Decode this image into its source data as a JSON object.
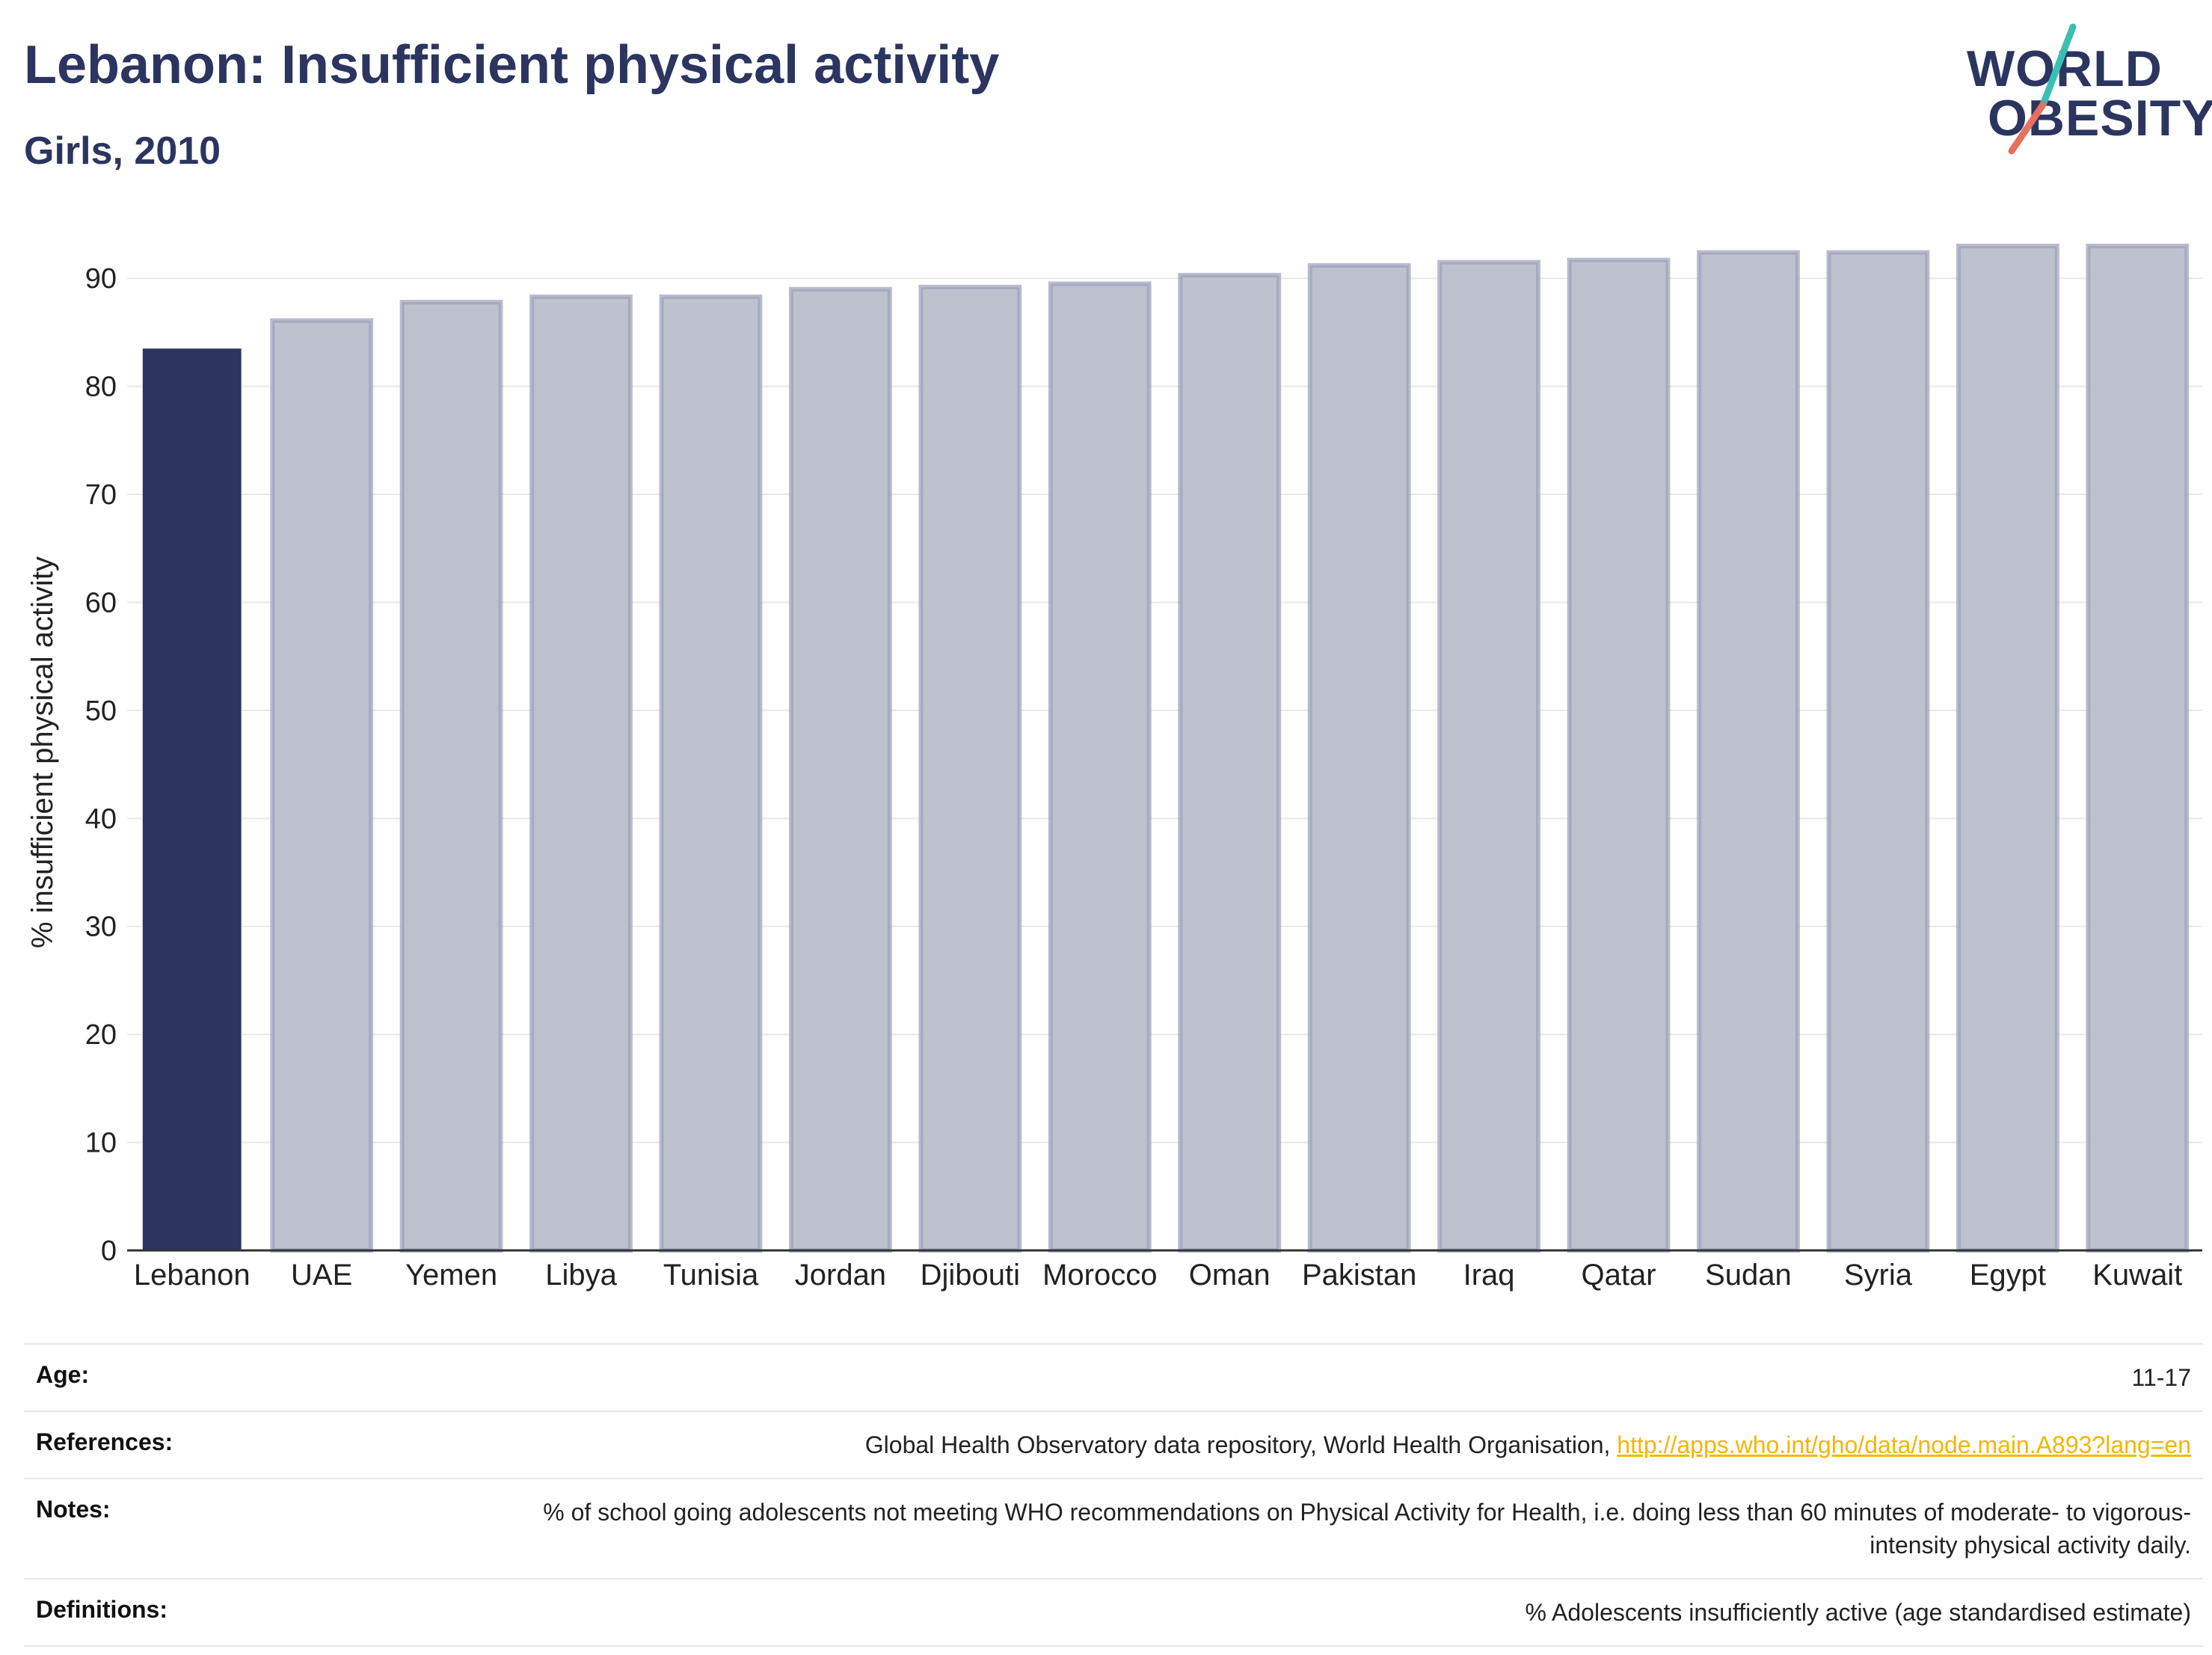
{
  "header": {
    "title": "Lebanon: Insufficient physical activity",
    "subtitle": "Girls, 2010"
  },
  "logo": {
    "line1": "WORLD",
    "line2": "OBESITY",
    "accent_colors": [
      "#3bbfb4",
      "#e8705e"
    ]
  },
  "colors": {
    "highlight": "#2b3560",
    "other_fill": "#bec1ce",
    "other_stroke": "#9aa0b8",
    "grid": "#e8e8ee",
    "link": "#f2b705"
  },
  "chart_data": {
    "type": "bar",
    "title": "Lebanon: Insufficient physical activity",
    "subtitle": "Girls, 2010",
    "xlabel": "",
    "ylabel": "% insufficient physical activity",
    "ylim": [
      0,
      95
    ],
    "yticks": [
      0,
      10,
      20,
      30,
      40,
      50,
      60,
      70,
      80,
      90
    ],
    "grid": true,
    "highlight": "Lebanon",
    "categories": [
      "Lebanon",
      "UAE",
      "Yemen",
      "Libya",
      "Tunisia",
      "Jordan",
      "Djibouti",
      "Morocco",
      "Oman",
      "Pakistan",
      "Iraq",
      "Qatar",
      "Sudan",
      "Syria",
      "Egypt",
      "Kuwait"
    ],
    "values": [
      83.5,
      86.1,
      87.8,
      88.3,
      88.3,
      89.0,
      89.2,
      89.5,
      90.3,
      91.2,
      91.5,
      91.7,
      92.4,
      92.4,
      93.0,
      93.0
    ]
  },
  "info": {
    "age_label": "Age:",
    "age_value": "11-17",
    "references_label": "References:",
    "references_text": "Global Health Observatory data repository, World Health Organisation, ",
    "references_link": "http://apps.who.int/gho/data/node.main.A893?lang=en",
    "notes_label": "Notes:",
    "notes_value": "% of school going adolescents not meeting WHO recommendations on Physical Activity for Health, i.e. doing less than 60 minutes of moderate- to vigorous-intensity physical activity daily.",
    "definitions_label": "Definitions:",
    "definitions_value": "% Adolescents insufficiently active (age standardised estimate)"
  }
}
